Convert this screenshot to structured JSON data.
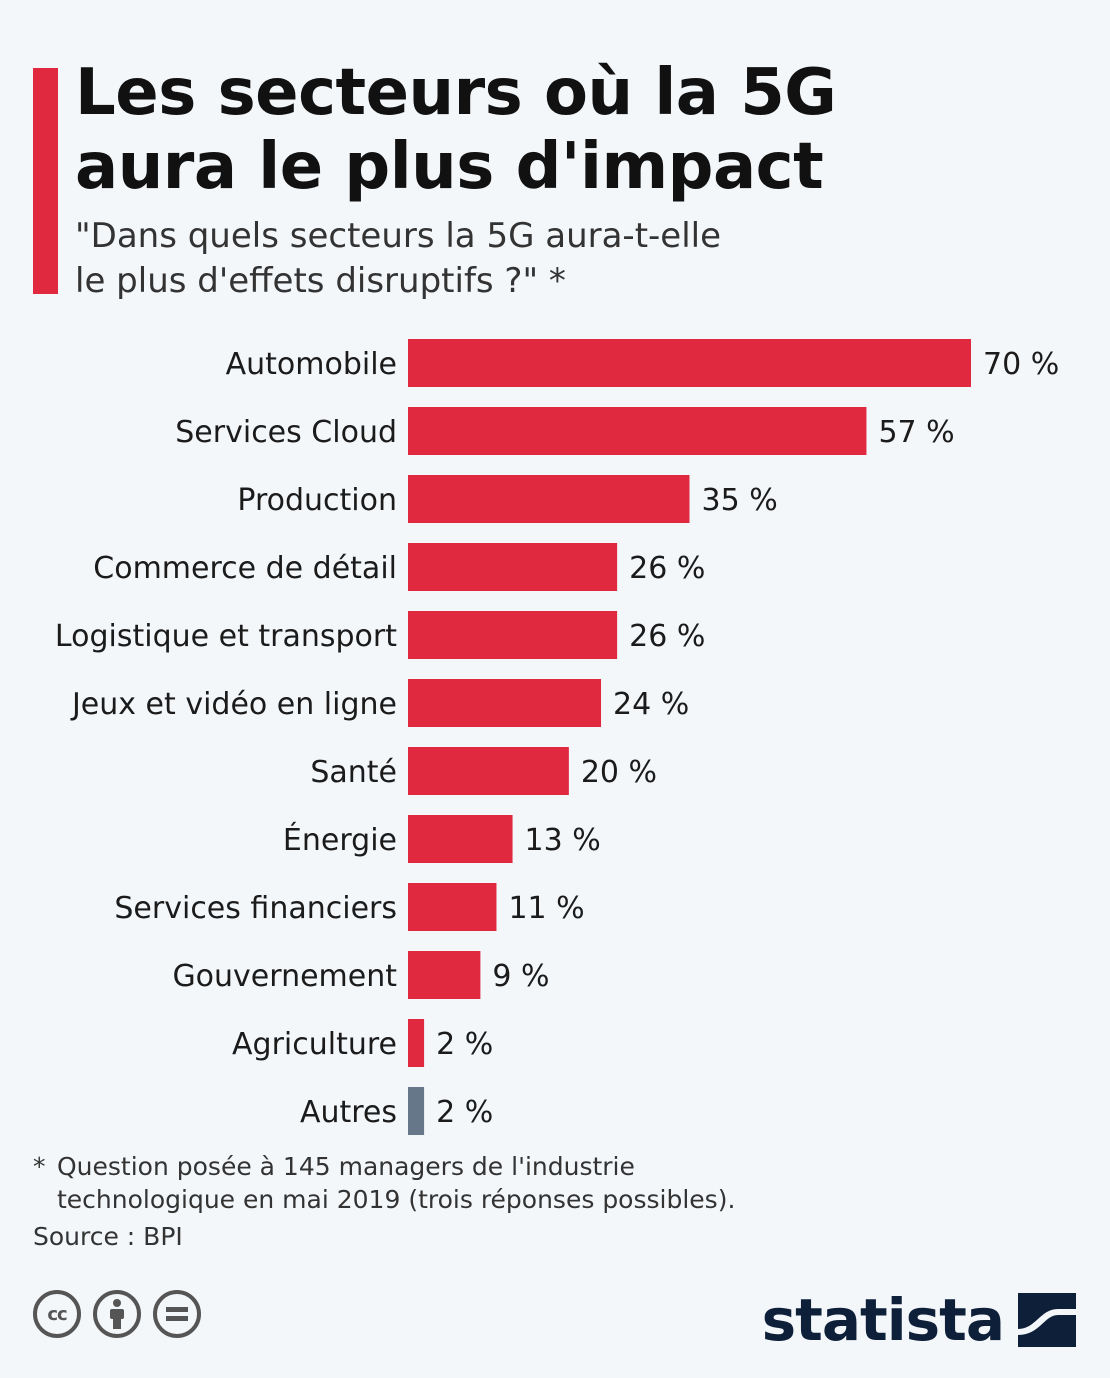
{
  "title_lines": [
    "Les secteurs où la 5G",
    "aura le plus d'impact"
  ],
  "subtitle_lines": [
    "\"Dans quels secteurs la 5G aura-t-elle",
    "le plus d'effets disruptifs ?\" *"
  ],
  "colors": {
    "accent": "#e0283e",
    "other": "#66778a",
    "brand": "#0e1f3a"
  },
  "chart_data": {
    "type": "bar",
    "orientation": "horizontal",
    "categories": [
      "Automobile",
      "Services Cloud",
      "Production",
      "Commerce de détail",
      "Logistique et transport",
      "Jeux et vidéo en ligne",
      "Santé",
      "Énergie",
      "Services financiers",
      "Gouvernement",
      "Agriculture",
      "Autres"
    ],
    "values": [
      70,
      57,
      35,
      26,
      26,
      24,
      20,
      13,
      11,
      9,
      2,
      2
    ],
    "labels": [
      "70 %",
      "57 %",
      "35 %",
      "26 %",
      "26 %",
      "24 %",
      "20 %",
      "13 %",
      "11 %",
      "9 %",
      "2 %",
      "2 %"
    ],
    "unit": "%",
    "xlim": [
      0,
      70
    ],
    "highlight_last_category_as_other": true
  },
  "footnote_lines": [
    "* ",
    "Question posée à 145 managers de l'industrie",
    "technologique en mai 2019 (trois réponses possibles)."
  ],
  "source": "Source : BPI",
  "licenses": [
    "cc-icon",
    "by-icon",
    "nd-icon"
  ],
  "logo_text": "statista"
}
